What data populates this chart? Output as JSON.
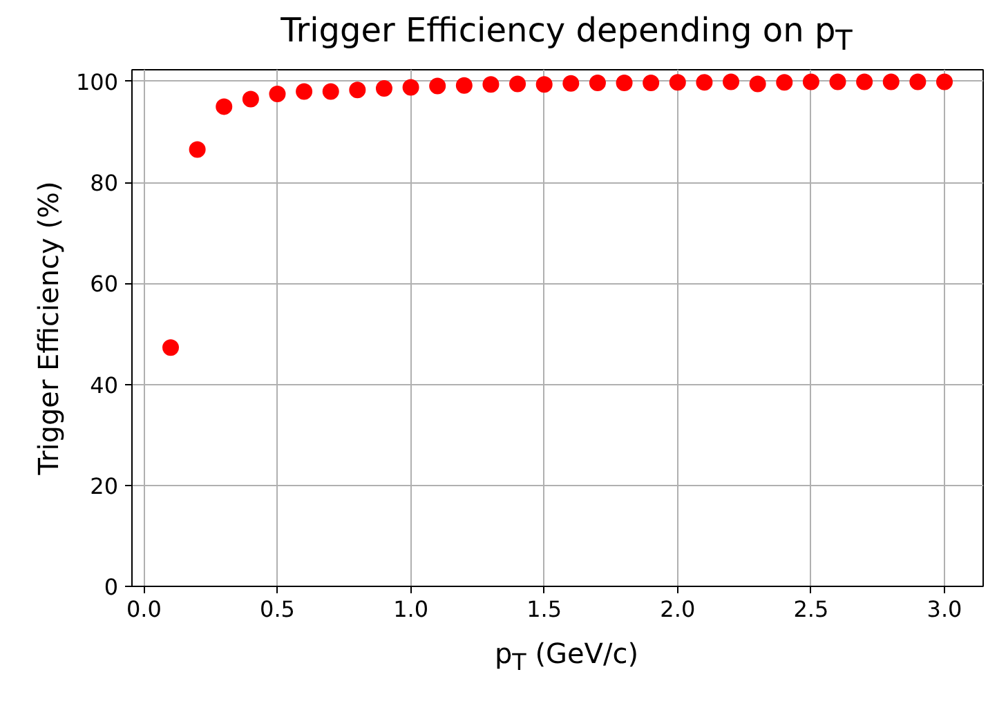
{
  "chart_data": {
    "type": "scatter",
    "title": "Trigger Efficiency depending on p$_{T}$",
    "xlabel": "p$_{T}$ (GeV/c)",
    "ylabel": "Trigger Efficiency (%)",
    "x": [
      0.1,
      0.2,
      0.3,
      0.4,
      0.5,
      0.6,
      0.7,
      0.8,
      0.9,
      1.0,
      1.1,
      1.2,
      1.3,
      1.4,
      1.5,
      1.6,
      1.7,
      1.8,
      1.9,
      2.0,
      2.1,
      2.2,
      2.3,
      2.4,
      2.5,
      2.6,
      2.7,
      2.8,
      2.9,
      3.0
    ],
    "series": [
      {
        "color": "#ff0000",
        "values": [
          47.3,
          86.5,
          95,
          96.5,
          97.5,
          98,
          98,
          98.3,
          98.6,
          98.8,
          99.1,
          99.2,
          99.4,
          99.5,
          99.4,
          99.6,
          99.7,
          99.7,
          99.7,
          99.8,
          99.8,
          99.9,
          99.5,
          99.8,
          99.9,
          99.9,
          99.9,
          99.9,
          99.9,
          99.9
        ]
      }
    ],
    "xlim": [
      -0.045,
      3.145
    ],
    "ylim": [
      0,
      102.3
    ],
    "xticks": [
      {
        "value": 0,
        "label": "0.0"
      },
      0.5,
      {
        "value": 1,
        "label": "1.0"
      },
      1.5,
      {
        "value": 2,
        "label": "2.0"
      },
      2.5,
      {
        "value": 3,
        "label": "3.0"
      }
    ],
    "yticks": [
      0,
      20,
      40,
      60,
      80,
      100
    ],
    "grid": true,
    "marker": "circle"
  }
}
